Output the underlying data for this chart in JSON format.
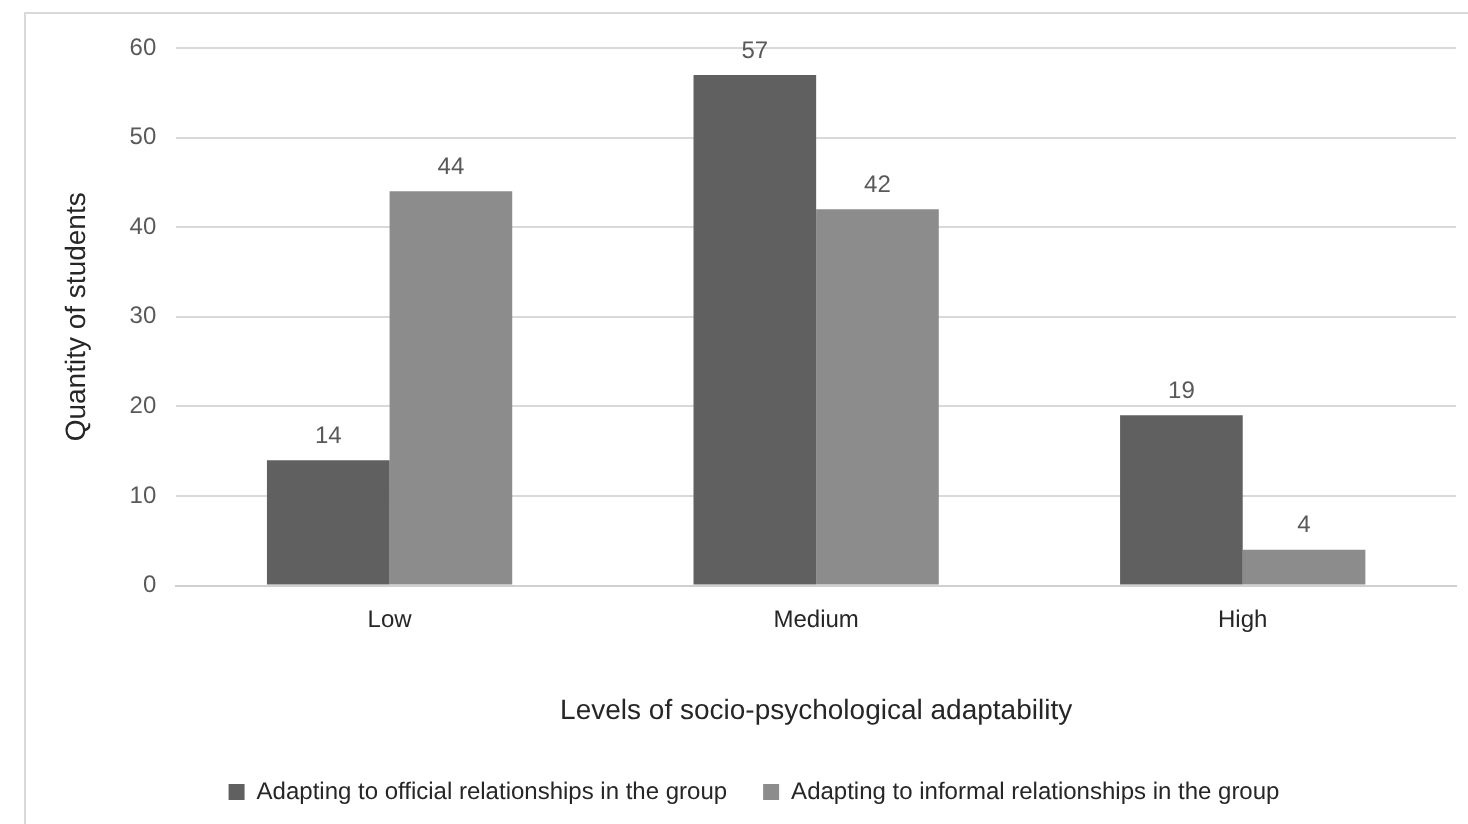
{
  "chart_data": {
    "type": "bar",
    "xlabel": "Levels of socio-psychological adaptability",
    "ylabel": "Quantity of students",
    "categories": [
      "Low",
      "Medium",
      "High"
    ],
    "series": [
      {
        "name": "Adapting to official relationships in the group",
        "color": "#606060",
        "values": [
          14,
          57,
          19
        ]
      },
      {
        "name": "Adapting to informal relationships in the group",
        "color": "#8c8c8c",
        "values": [
          44,
          42,
          4
        ]
      }
    ],
    "ylim": [
      0,
      60
    ],
    "yticks": [
      0,
      10,
      20,
      30,
      40,
      50,
      60
    ],
    "grid": "y",
    "legend": "bottom",
    "data_labels": true
  }
}
